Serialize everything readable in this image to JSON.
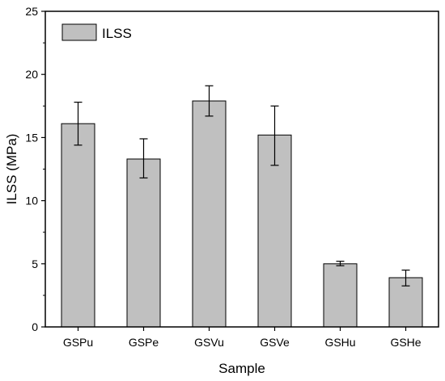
{
  "chart_data": {
    "type": "bar",
    "xlabel": "Sample",
    "ylabel": "ILSS (MPa)",
    "categories": [
      "GSPu",
      "GSPe",
      "GSVu",
      "GSVe",
      "GSHu",
      "GSHe"
    ],
    "series": [
      {
        "name": "ILSS",
        "values": [
          16.1,
          13.3,
          17.9,
          15.2,
          5.0,
          3.9
        ],
        "error_low": [
          14.4,
          11.8,
          16.7,
          12.8,
          4.85,
          3.25
        ],
        "error_high": [
          17.8,
          14.9,
          19.1,
          17.5,
          5.2,
          4.5
        ],
        "fill": "#c0c0c0",
        "stroke": "#000000"
      }
    ],
    "ylim": [
      0,
      25
    ],
    "yticks": [
      0,
      5,
      10,
      15,
      20,
      25
    ],
    "grid": false,
    "legend_position": "top-left"
  }
}
